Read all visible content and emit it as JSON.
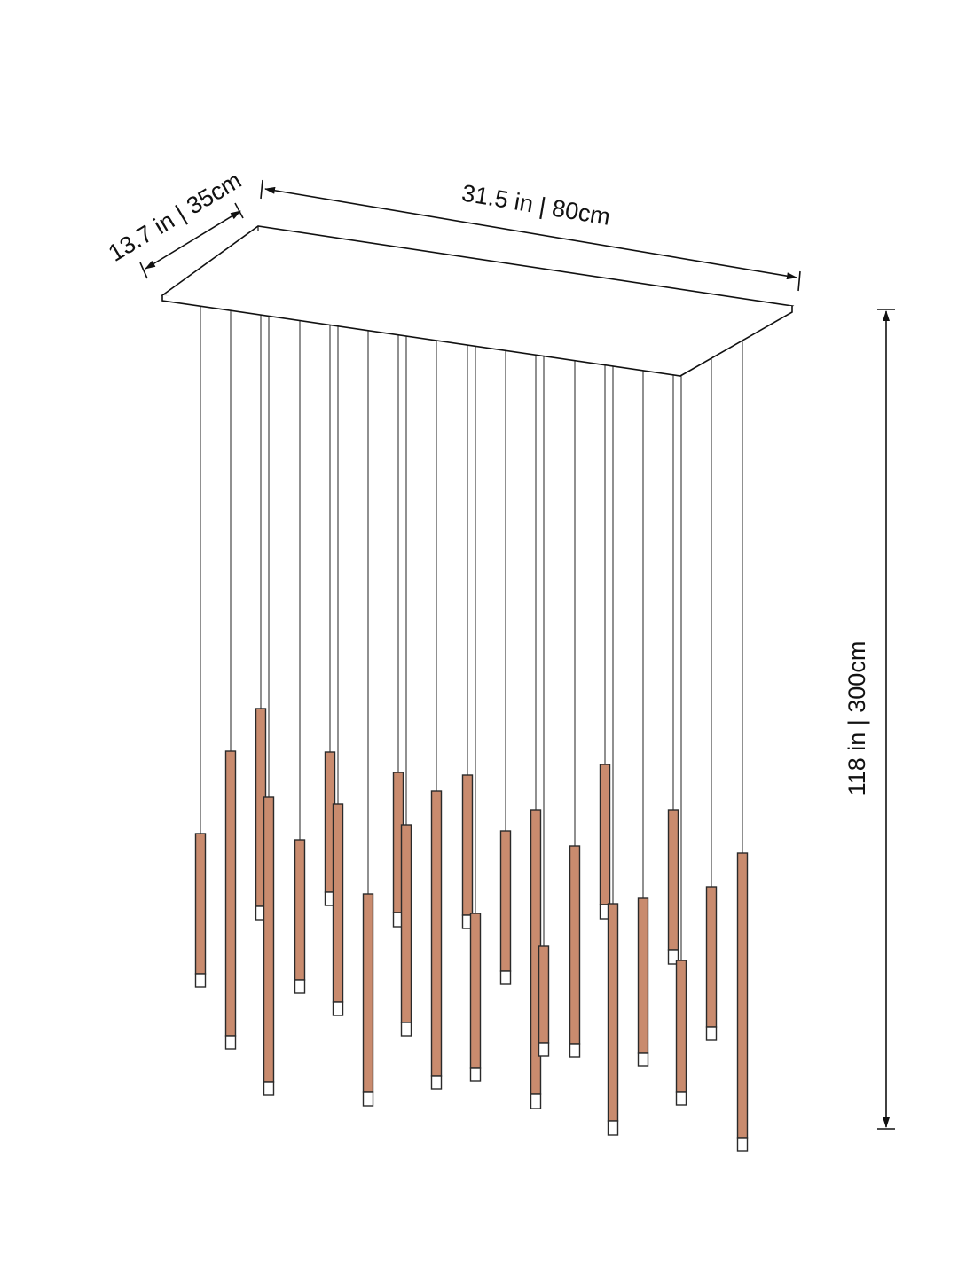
{
  "dimensions": {
    "depth": "13.7 in | 35cm",
    "width": "31.5 in | 80cm",
    "height": "118 in | 300cm"
  }
}
